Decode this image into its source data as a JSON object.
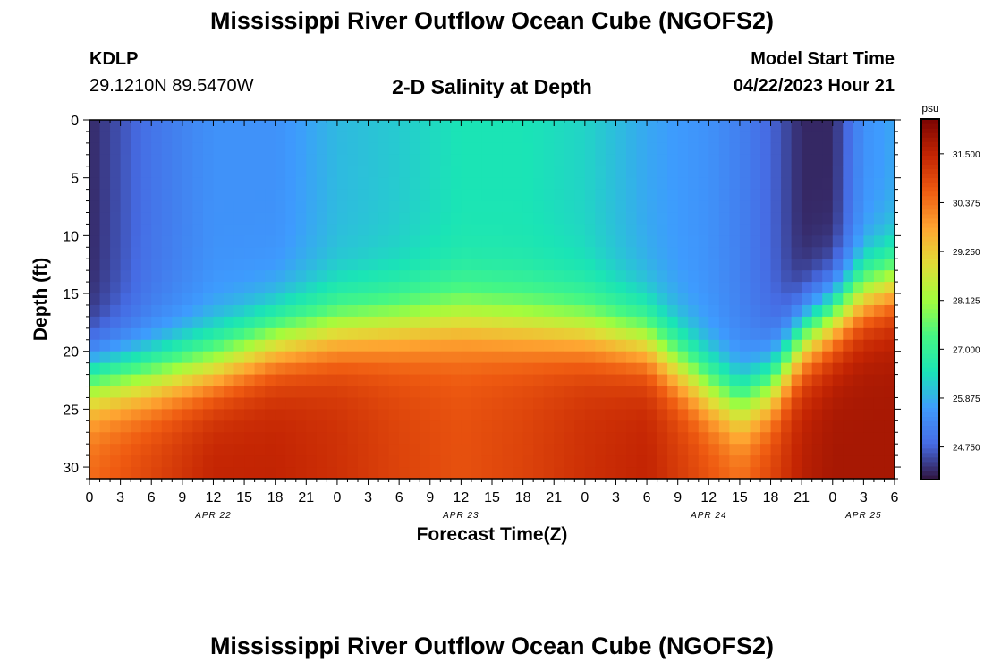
{
  "figure": {
    "title": "Mississippi River Outflow Ocean Cube (NGOFS2)",
    "station_id": "KDLP",
    "station_coords": "29.1210N  89.5470W",
    "subtitle": "2-D Salinity at Depth",
    "model_start_label": "Model Start Time",
    "model_start_value": "04/22/2023 Hour 21",
    "colorbar_unit": "psu",
    "colors": {
      "low": "#30123b",
      "blue": "#3e9bfe",
      "cyan": "#1ae4b6",
      "green": "#a4fc3c",
      "orange": "#fb8022",
      "red": "#c42503",
      "high": "#7a0403"
    }
  },
  "chart_data": {
    "type": "heatmap",
    "title": "2-D Salinity at Depth",
    "xlabel": "Forecast Time(Z)",
    "ylabel": "Depth (ft)",
    "x_tick_labels": [
      "0",
      "3",
      "6",
      "9",
      "12",
      "15",
      "18",
      "21",
      "0",
      "3",
      "6",
      "9",
      "12",
      "15",
      "18",
      "21",
      "0",
      "3",
      "6",
      "9",
      "12",
      "15",
      "18",
      "21",
      "0",
      "3",
      "6"
    ],
    "x_range_hours": [
      0,
      78
    ],
    "date_labels": [
      {
        "label": "APR 22",
        "hour": 12
      },
      {
        "label": "APR 23",
        "hour": 36
      },
      {
        "label": "APR 24",
        "hour": 60
      },
      {
        "label": "APR 25",
        "hour": 75
      }
    ],
    "y_ticks": [
      0,
      5,
      10,
      15,
      20,
      25,
      30
    ],
    "ylim": [
      0,
      31
    ],
    "y_inverted": true,
    "colorbar": {
      "unit": "psu",
      "range": [
        24.0,
        32.3
      ],
      "tick_values": [
        24.75,
        25.875,
        27.0,
        28.125,
        29.25,
        30.375,
        31.5
      ],
      "tick_labels": [
        "24.750",
        "25.875",
        "27.000",
        "28.125",
        "29.250",
        "30.375",
        "31.500"
      ]
    },
    "value_model": {
      "description_hours": [
        0,
        6,
        12,
        18,
        24,
        30,
        36,
        42,
        48,
        54,
        60,
        63,
        66,
        69,
        72,
        75,
        78
      ],
      "halocline_depth_ft": [
        22.5,
        22,
        21,
        19,
        18,
        17.5,
        17,
        17.5,
        18,
        19,
        23,
        24.5,
        23,
        19,
        17,
        15,
        14
      ],
      "surface_salinity_psu": [
        24.2,
        25.0,
        25.5,
        25.5,
        26.0,
        26.2,
        26.5,
        26.5,
        26.3,
        25.8,
        25.5,
        25.2,
        24.8,
        24.2,
        24.2,
        25.5,
        25.8
      ],
      "bottom_salinity_psu": [
        30.5,
        31.0,
        31.5,
        31.5,
        31.3,
        31.0,
        30.8,
        31.0,
        31.3,
        31.5,
        30.8,
        30.5,
        31.0,
        31.6,
        31.8,
        31.8,
        31.8
      ]
    }
  }
}
